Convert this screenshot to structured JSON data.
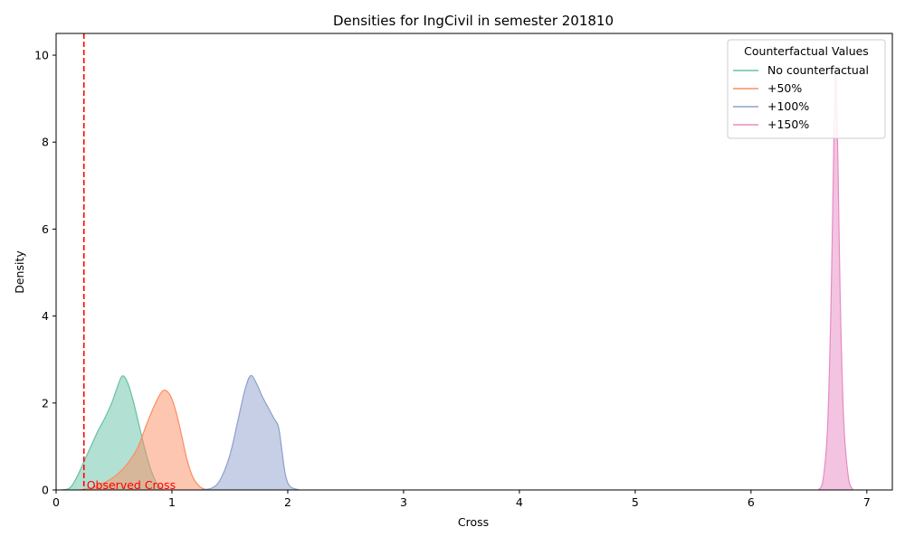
{
  "chart_data": {
    "type": "area",
    "title": "Densities for IngCivil in semester 201810",
    "xlabel": "Cross",
    "ylabel": "Density",
    "xlim": [
      0,
      7.22
    ],
    "ylim": [
      0,
      10.5
    ],
    "xticks": [
      0,
      1,
      2,
      3,
      4,
      5,
      6,
      7
    ],
    "yticks": [
      0,
      2,
      4,
      6,
      8,
      10
    ],
    "grid": false,
    "legend": {
      "title": "Counterfactual Values",
      "placement": "top-right"
    },
    "reference_line": {
      "x": 0.24,
      "label": "Observed Cross",
      "color": "#ff0000",
      "style": "dashed"
    },
    "series": [
      {
        "name": "No counterfactual",
        "color": "#66c2a5",
        "points": [
          [
            0.05,
            0
          ],
          [
            0.12,
            0.05
          ],
          [
            0.18,
            0.3
          ],
          [
            0.24,
            0.65
          ],
          [
            0.3,
            1.0
          ],
          [
            0.36,
            1.35
          ],
          [
            0.42,
            1.65
          ],
          [
            0.48,
            2.0
          ],
          [
            0.52,
            2.3
          ],
          [
            0.57,
            2.62
          ],
          [
            0.62,
            2.45
          ],
          [
            0.67,
            2.0
          ],
          [
            0.72,
            1.45
          ],
          [
            0.77,
            0.9
          ],
          [
            0.82,
            0.45
          ],
          [
            0.87,
            0.15
          ],
          [
            0.93,
            0
          ]
        ]
      },
      {
        "name": "+50%",
        "color": "#fc8d62",
        "points": [
          [
            0.2,
            0
          ],
          [
            0.3,
            0.05
          ],
          [
            0.4,
            0.15
          ],
          [
            0.5,
            0.3
          ],
          [
            0.6,
            0.55
          ],
          [
            0.7,
            0.95
          ],
          [
            0.78,
            1.5
          ],
          [
            0.85,
            1.95
          ],
          [
            0.92,
            2.28
          ],
          [
            0.98,
            2.2
          ],
          [
            1.03,
            1.85
          ],
          [
            1.08,
            1.3
          ],
          [
            1.13,
            0.7
          ],
          [
            1.18,
            0.3
          ],
          [
            1.24,
            0.08
          ],
          [
            1.3,
            0
          ]
        ]
      },
      {
        "name": "+100%",
        "color": "#8da0cb",
        "points": [
          [
            1.25,
            0
          ],
          [
            1.35,
            0.05
          ],
          [
            1.42,
            0.25
          ],
          [
            1.5,
            0.8
          ],
          [
            1.57,
            1.6
          ],
          [
            1.63,
            2.3
          ],
          [
            1.68,
            2.63
          ],
          [
            1.73,
            2.45
          ],
          [
            1.78,
            2.15
          ],
          [
            1.84,
            1.85
          ],
          [
            1.88,
            1.65
          ],
          [
            1.92,
            1.45
          ],
          [
            1.95,
            0.9
          ],
          [
            1.98,
            0.35
          ],
          [
            2.02,
            0.08
          ],
          [
            2.1,
            0
          ]
        ]
      },
      {
        "name": "+150%",
        "color": "#e78ac3",
        "points": [
          [
            6.58,
            0
          ],
          [
            6.62,
            0.2
          ],
          [
            6.66,
            1.4
          ],
          [
            6.69,
            4.2
          ],
          [
            6.71,
            7.2
          ],
          [
            6.73,
            9.6
          ],
          [
            6.75,
            7.6
          ],
          [
            6.77,
            4.4
          ],
          [
            6.8,
            1.6
          ],
          [
            6.84,
            0.3
          ],
          [
            6.88,
            0
          ]
        ]
      }
    ]
  }
}
